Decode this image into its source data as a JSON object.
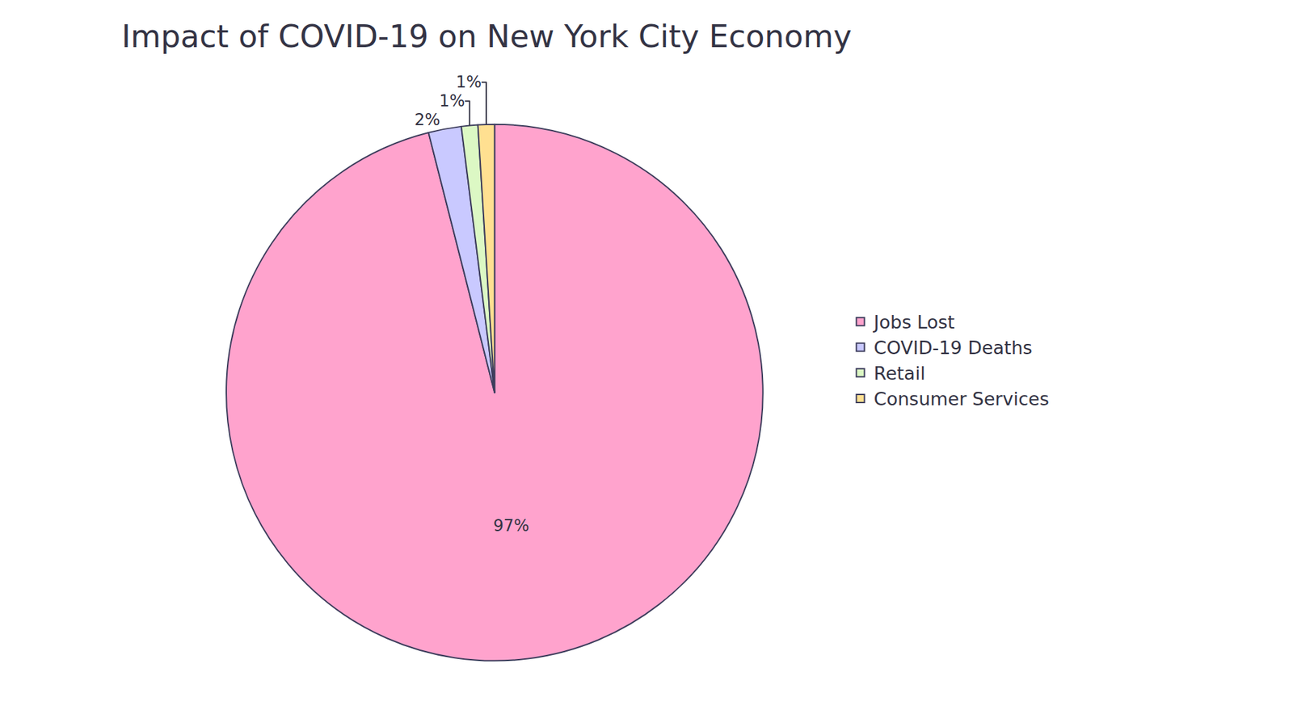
{
  "chart_data": {
    "type": "pie",
    "title": "Impact of COVID-19 on New York City Economy",
    "categories": [
      "Jobs Lost",
      "COVID-19 Deaths",
      "Retail",
      "Consumer Services"
    ],
    "values": [
      97,
      2,
      1,
      1
    ],
    "value_labels": [
      "97%",
      "2%",
      "1%",
      "1%"
    ],
    "colors": [
      "#ffa3cd",
      "#c9c9ff",
      "#dcf8c4",
      "#ffe091"
    ],
    "data_labels": true,
    "legend": "right"
  }
}
